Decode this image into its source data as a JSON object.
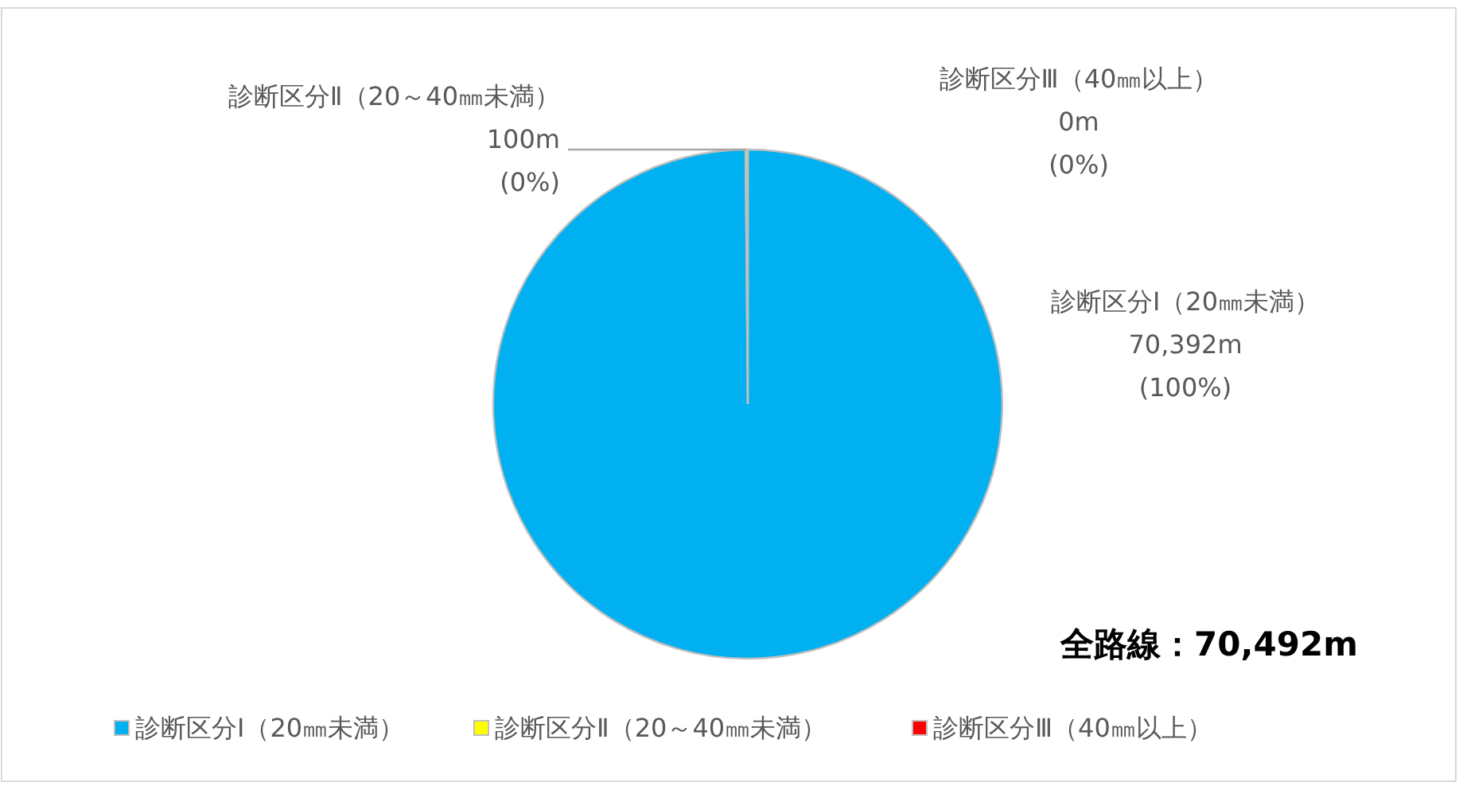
{
  "chart_data": {
    "type": "pie",
    "categories": [
      "診断区分Ⅰ（20㎜未満）",
      "診断区分Ⅱ（20～40㎜未満）",
      "診断区分Ⅲ（40㎜以上）"
    ],
    "values": [
      70392,
      100,
      0
    ],
    "colors": [
      "#00b0f0",
      "#ffff00",
      "#ff0000"
    ],
    "value_labels": [
      "70,392m",
      "100m",
      "0m"
    ],
    "annotations": [
      "全路線：70,492m",
      {
        "text": "(100%)",
        "x": "診断区分Ⅰ（20㎜未満）"
      },
      {
        "text": "(0%)",
        "x": "診断区分Ⅱ（20～40㎜未満）"
      },
      {
        "text": "(0%)",
        "x": "診断区分Ⅲ（40㎜以上）"
      }
    ],
    "legend": "bottom"
  }
}
